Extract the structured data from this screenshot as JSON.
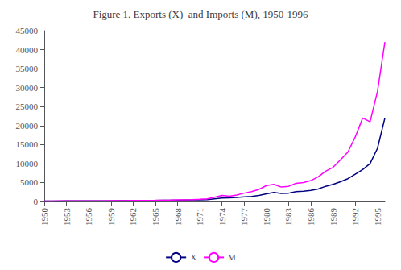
{
  "chart_data": {
    "type": "line",
    "title": "Figure 1. Exports (X)  and Imports (M), 1950-1996",
    "x": [
      1950,
      1951,
      1952,
      1953,
      1954,
      1955,
      1956,
      1957,
      1958,
      1959,
      1960,
      1961,
      1962,
      1963,
      1964,
      1965,
      1966,
      1967,
      1968,
      1969,
      1970,
      1971,
      1972,
      1973,
      1974,
      1975,
      1976,
      1977,
      1978,
      1979,
      1980,
      1981,
      1982,
      1983,
      1984,
      1985,
      1986,
      1987,
      1988,
      1989,
      1990,
      1991,
      1992,
      1993,
      1994,
      1995,
      1996
    ],
    "series": [
      {
        "name": "X",
        "color": "#000080",
        "values": [
          100,
          120,
          130,
          140,
          145,
          155,
          170,
          185,
          175,
          180,
          200,
          215,
          225,
          240,
          265,
          290,
          310,
          315,
          340,
          370,
          400,
          450,
          500,
          700,
          900,
          950,
          1050,
          1200,
          1350,
          1600,
          2000,
          2400,
          2100,
          2200,
          2600,
          2700,
          2900,
          3300,
          4000,
          4500,
          5200,
          6000,
          7200,
          8400,
          10000,
          14000,
          22000
        ]
      },
      {
        "name": "M",
        "color": "#FF00FF",
        "values": [
          110,
          130,
          135,
          145,
          150,
          160,
          175,
          180,
          170,
          190,
          210,
          220,
          240,
          255,
          275,
          300,
          340,
          350,
          400,
          450,
          500,
          580,
          700,
          1100,
          1600,
          1400,
          1700,
          2200,
          2600,
          3200,
          4200,
          4500,
          3800,
          4000,
          4800,
          5000,
          5500,
          6500,
          8000,
          9000,
          11000,
          13000,
          17000,
          22000,
          21000,
          29000,
          42000
        ]
      }
    ],
    "xlim": [
      1950,
      1996
    ],
    "xticks": [
      1950,
      1953,
      1956,
      1959,
      1962,
      1965,
      1968,
      1971,
      1974,
      1977,
      1980,
      1983,
      1986,
      1989,
      1992,
      1995
    ],
    "ylim": [
      0,
      45000
    ],
    "yticks": [
      0,
      5000,
      10000,
      15000,
      20000,
      25000,
      30000,
      35000,
      40000,
      45000
    ],
    "grid": false,
    "legend": "bottom"
  }
}
